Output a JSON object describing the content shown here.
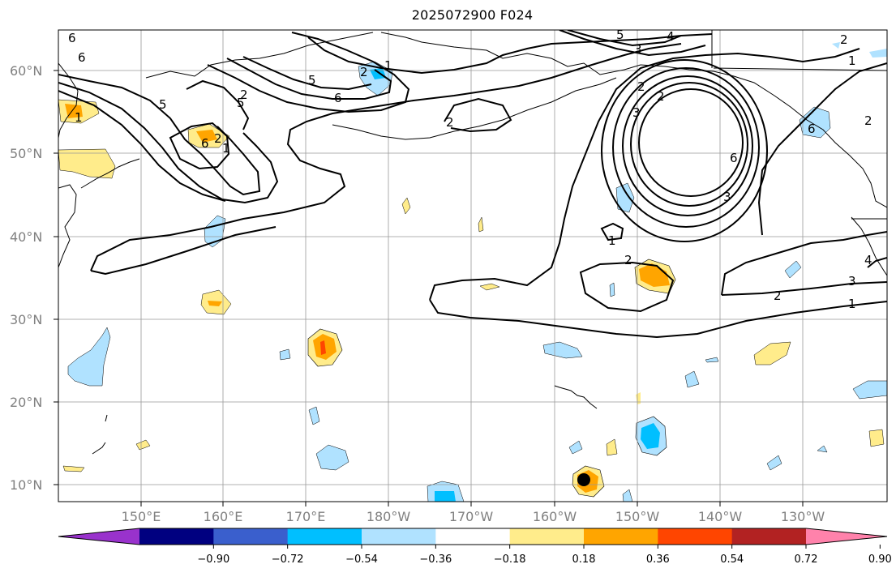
{
  "title": "2025072900 F024",
  "map": {
    "projection": "PlateCarree",
    "lon_range": [
      140,
      242
    ],
    "lat_range": [
      8,
      65
    ],
    "lat_labels": [
      "10°N",
      "20°N",
      "30°N",
      "40°N",
      "50°N",
      "60°N"
    ],
    "lon_labels": [
      "150°E",
      "160°E",
      "170°E",
      "180°W",
      "170°W",
      "160°W",
      "150°W",
      "140°W",
      "130°W"
    ],
    "gridlines": true,
    "coastlines": true
  },
  "contours": {
    "labels": [
      "6",
      "6",
      "5",
      "5",
      "5",
      "6",
      "2",
      "1",
      "2",
      "1",
      "2",
      "5",
      "4",
      "3",
      "2",
      "1",
      "2",
      "2",
      "3",
      "6",
      "3",
      "2",
      "1",
      "2",
      "1",
      "2",
      "3",
      "6",
      "4",
      "6",
      "2",
      "1"
    ]
  },
  "colorbar": {
    "colors": [
      "#9932cc",
      "#000080",
      "#3a5fcd",
      "#00bfff",
      "#b0e2ff",
      "#ffffff",
      "#ffec8b",
      "#ffa500",
      "#ff4500",
      "#b22222",
      "#ff82ab"
    ],
    "ticks": [
      "−0.90",
      "−0.72",
      "−0.54",
      "−0.36",
      "−0.18",
      "0.18",
      "0.36",
      "0.54",
      "0.72",
      "0.90"
    ],
    "extend": "both"
  },
  "marker": {
    "color": "#000000",
    "label": ""
  }
}
